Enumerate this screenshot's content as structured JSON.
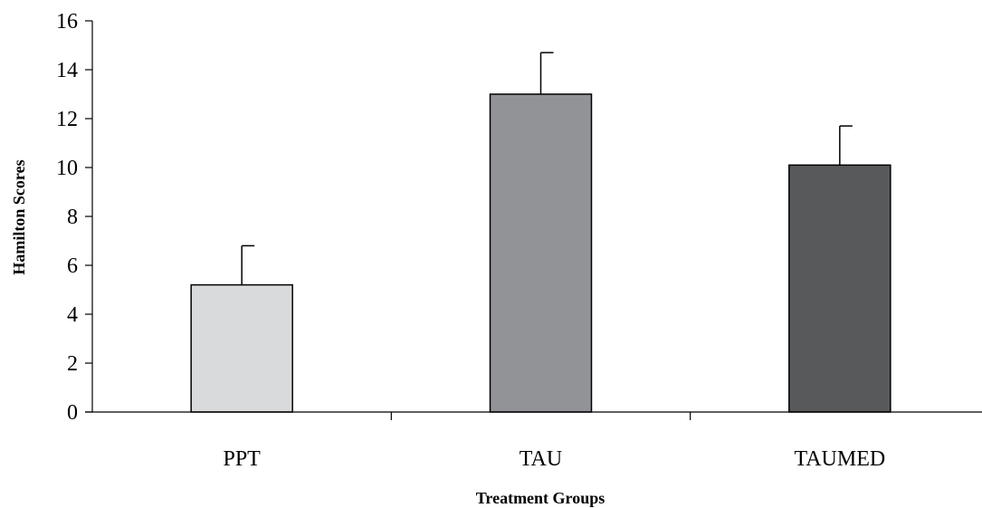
{
  "chart_data": {
    "type": "bar",
    "categories": [
      "PPT",
      "TAU",
      "TAUMED"
    ],
    "values": [
      5.2,
      13.0,
      10.1
    ],
    "error_upper": [
      6.8,
      14.7,
      11.7
    ],
    "colors": [
      "#d9dadc",
      "#929396",
      "#58595b"
    ],
    "xlabel": "Treatment Groups",
    "ylabel": "Hamilton Scores",
    "ylim": [
      0,
      16
    ],
    "yticks": [
      0,
      2,
      4,
      6,
      8,
      10,
      12,
      14,
      16
    ],
    "grid": false
  }
}
